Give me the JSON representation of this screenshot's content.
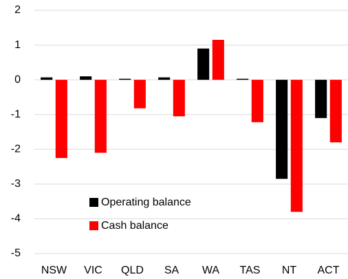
{
  "chart_data": {
    "type": "bar",
    "categories": [
      "NSW",
      "VIC",
      "QLD",
      "SA",
      "WA",
      "TAS",
      "NT",
      "ACT"
    ],
    "series": [
      {
        "name": "Operating balance",
        "color": "#000000",
        "values": [
          0.07,
          0.1,
          0.03,
          0.07,
          0.9,
          0.03,
          -2.85,
          -1.1
        ]
      },
      {
        "name": "Cash balance",
        "color": "#ff0000",
        "values": [
          -2.25,
          -2.1,
          -0.82,
          -1.05,
          1.15,
          -1.22,
          -3.8,
          -1.8
        ]
      }
    ],
    "ylim": [
      -5,
      2
    ],
    "yticks": [
      -5,
      -4,
      -3,
      -2,
      -1,
      0,
      1,
      2
    ],
    "grid": true,
    "legend": "lower left"
  }
}
